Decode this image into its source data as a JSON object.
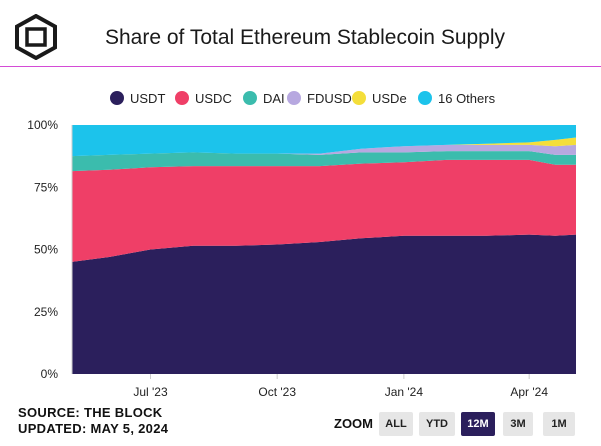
{
  "title": "Share of Total Ethereum Stablecoin Supply",
  "legend": [
    {
      "label": "USDT",
      "color": "#2b1f5c"
    },
    {
      "label": "USDC",
      "color": "#ef3f67"
    },
    {
      "label": "DAI",
      "color": "#3bbcad"
    },
    {
      "label": "FDUSD",
      "color": "#b7a8e0"
    },
    {
      "label": "USDe",
      "color": "#f4de3a"
    },
    {
      "label": "16 Others",
      "color": "#1cc3eb"
    }
  ],
  "footer": {
    "source": "SOURCE: THE BLOCK",
    "updated": "UPDATED: MAY 5, 2024"
  },
  "zoom": {
    "label": "ZOOM",
    "buttons": [
      {
        "label": "ALL",
        "active": false
      },
      {
        "label": "YTD",
        "active": false
      },
      {
        "label": "12M",
        "active": true
      },
      {
        "label": "3M",
        "active": false
      },
      {
        "label": "1M",
        "active": false
      }
    ]
  },
  "chart_data": {
    "type": "area",
    "stacked": true,
    "normalized": true,
    "y_ticks": [
      "0%",
      "25%",
      "50%",
      "75%",
      "100%"
    ],
    "ylim": [
      0,
      100
    ],
    "x_ticks": [
      {
        "label": "Jul '23",
        "date": "2023-07-01"
      },
      {
        "label": "Oct '23",
        "date": "2023-10-01"
      },
      {
        "label": "Jan '24",
        "date": "2024-01-01"
      },
      {
        "label": "Apr '24",
        "date": "2024-04-01"
      }
    ],
    "x_range": [
      "2023-05-05",
      "2024-05-05"
    ],
    "x": [
      "2023-05-05",
      "2023-06-01",
      "2023-07-01",
      "2023-08-01",
      "2023-09-01",
      "2023-10-01",
      "2023-11-01",
      "2023-12-01",
      "2024-01-01",
      "2024-02-01",
      "2024-03-01",
      "2024-04-01",
      "2024-04-20",
      "2024-05-05"
    ],
    "series": [
      {
        "name": "USDT",
        "values": [
          45,
          47,
          50,
          51.5,
          51.5,
          52,
          53,
          54.5,
          55.5,
          55.5,
          55.5,
          56,
          55.5,
          56
        ]
      },
      {
        "name": "USDC",
        "values": [
          36.5,
          35,
          33,
          32,
          32,
          31.5,
          30.5,
          30,
          29.5,
          30.5,
          30.5,
          30,
          28.5,
          28
        ]
      },
      {
        "name": "DAI",
        "values": [
          6,
          6,
          5.5,
          5.5,
          5,
          5,
          4.5,
          4.5,
          4,
          3.5,
          3.5,
          3.5,
          4,
          4
        ]
      },
      {
        "name": "FDUSD",
        "values": [
          0,
          0,
          0,
          0,
          0,
          0,
          0.5,
          1.5,
          2.5,
          2.5,
          2.5,
          2.5,
          3.5,
          4
        ]
      },
      {
        "name": "USDe",
        "values": [
          0,
          0,
          0,
          0,
          0,
          0,
          0,
          0,
          0,
          0,
          0.5,
          1,
          2.5,
          3
        ]
      },
      {
        "name": "16 Others",
        "values": [
          12.5,
          12,
          11.5,
          11,
          11.5,
          11.5,
          11.5,
          9.5,
          8.5,
          8,
          7.5,
          7,
          6,
          5
        ]
      }
    ],
    "grid": false,
    "legend_position": "top"
  }
}
